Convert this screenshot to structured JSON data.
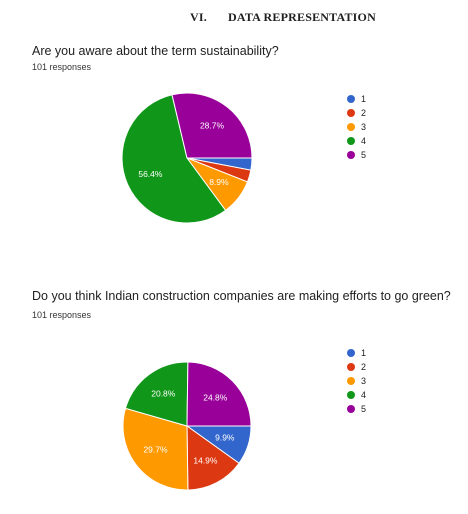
{
  "heading": {
    "number": "VI.",
    "title": "DATA REPRESENTATION"
  },
  "questions": [
    {
      "question": "Are you aware about the term sustainability?",
      "responses": "101 responses"
    },
    {
      "question": "Do you think Indian construction companies are making efforts to go green?",
      "responses": "101 responses"
    }
  ],
  "chart_data": [
    {
      "type": "pie",
      "title": "Are you aware about the term sustainability?",
      "subtitle": "101 responses",
      "categories": [
        "1",
        "2",
        "3",
        "4",
        "5"
      ],
      "values": [
        3.0,
        3.0,
        8.9,
        56.4,
        28.7
      ],
      "value_labels": [
        "",
        "",
        "8.9%",
        "56.4%",
        "28.7%"
      ],
      "colors": [
        "#3366cc",
        "#dc3912",
        "#ff9900",
        "#109618",
        "#990099"
      ],
      "legend_position": "right"
    },
    {
      "type": "pie",
      "title": "Do you think Indian construction companies are making efforts to go green?",
      "subtitle": "101 responses",
      "categories": [
        "1",
        "2",
        "3",
        "4",
        "5"
      ],
      "values": [
        9.9,
        14.9,
        29.7,
        20.8,
        24.8
      ],
      "value_labels": [
        "9.9%",
        "14.9%",
        "29.7%",
        "20.8%",
        "24.8%"
      ],
      "colors": [
        "#3366cc",
        "#dc3912",
        "#ff9900",
        "#109618",
        "#990099"
      ],
      "legend_position": "right"
    }
  ]
}
